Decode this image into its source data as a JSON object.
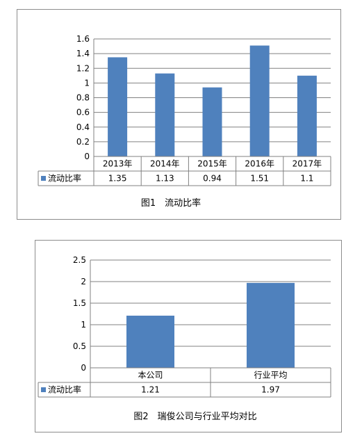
{
  "colors": {
    "bar": "#4f81bd",
    "grid": "#808080",
    "axis": "#808080"
  },
  "chart_data": [
    {
      "type": "bar",
      "title": "",
      "caption": "图1　流动比率",
      "categories": [
        "2013年",
        "2014年",
        "2015年",
        "2016年",
        "2017年"
      ],
      "series": [
        {
          "name": "流动比率",
          "values": [
            1.35,
            1.13,
            0.94,
            1.51,
            1.1
          ]
        }
      ],
      "table_values": [
        "1.35",
        "1.13",
        "0.94",
        "1.51",
        "1.1"
      ],
      "ylim": [
        0,
        1.6
      ],
      "yticks": [
        0,
        0.2,
        0.4,
        0.6,
        0.8,
        1,
        1.2,
        1.4,
        1.6
      ],
      "ytick_labels": [
        "0",
        "0.2",
        "0.4",
        "0.6",
        "0.8",
        "1",
        "1.2",
        "1.4",
        "1.6"
      ],
      "grid": true,
      "legend": "data-table"
    },
    {
      "type": "bar",
      "title": "",
      "caption": "图2　瑞俊公司与行业平均对比",
      "categories": [
        "本公司",
        "行业平均"
      ],
      "series": [
        {
          "name": "流动比率",
          "values": [
            1.21,
            1.97
          ]
        }
      ],
      "table_values": [
        "1.21",
        "1.97"
      ],
      "ylim": [
        0,
        2.5
      ],
      "yticks": [
        0,
        0.5,
        1,
        1.5,
        2,
        2.5
      ],
      "ytick_labels": [
        "0",
        "0.5",
        "1",
        "1.5",
        "2",
        "2.5"
      ],
      "grid": true,
      "legend": "data-table"
    }
  ]
}
